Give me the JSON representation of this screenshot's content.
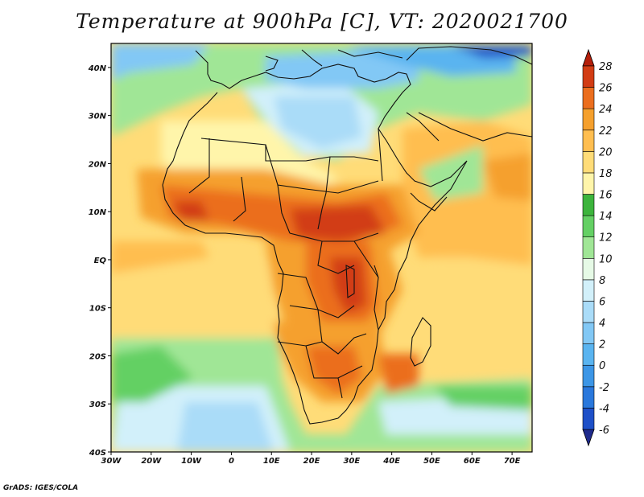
{
  "title": "Temperature at 900hPa [C], VT: 2020021700",
  "credit": "GrADS: IGES/COLA",
  "map": {
    "lon_range": [
      -30,
      75
    ],
    "lat_range": [
      -40,
      45
    ],
    "lon_ticks": [
      "30W",
      "20W",
      "10W",
      "0",
      "10E",
      "20E",
      "30E",
      "40E",
      "50E",
      "60E",
      "70E"
    ],
    "lat_ticks": [
      "40S",
      "30S",
      "20S",
      "10S",
      "EQ",
      "10N",
      "20N",
      "30N",
      "40N"
    ]
  },
  "colorbar": {
    "labels": [
      "-6",
      "-4",
      "-2",
      "0",
      "2",
      "4",
      "6",
      "8",
      "10",
      "12",
      "14",
      "16",
      "18",
      "20",
      "22",
      "24",
      "26",
      "28"
    ],
    "colors": [
      "#1e2a8c",
      "#1e50c8",
      "#2a78dc",
      "#3c96e6",
      "#5ab4f0",
      "#82c8f5",
      "#aadcf8",
      "#d2f0fa",
      "#e6fae6",
      "#a0e696",
      "#64d064",
      "#3cb43c",
      "#fff5aa",
      "#ffdc78",
      "#ffbe50",
      "#f5a02d",
      "#eb6e1e",
      "#d23c14",
      "#b41e0a"
    ]
  }
}
